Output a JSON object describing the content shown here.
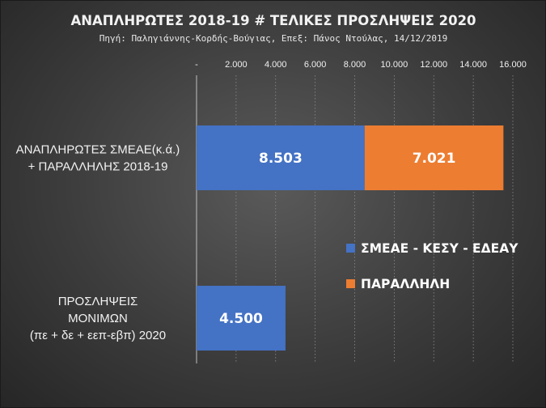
{
  "chart_data": {
    "type": "bar",
    "orientation": "horizontal",
    "stacked": true,
    "title": "ΑΝΑΠΛΗΡΩΤΕΣ 2018-19 # ΤΕΛΙΚΕΣ ΠΡΟΣΛΗΨΕΙΣ 2020",
    "subtitle": "Πηγή: Παληγιάννης-Κορδής-Βούγιας, Επεξ: Πάνος Ντούλας, 14/12/2019",
    "categories": [
      [
        "ΑΝΑΠΛΗΡΩΤΕΣ ΣΜΕΑΕ(κ.ά.)",
        "+ ΠΑΡΑΛΛΗΛΗΣ 2018-19"
      ],
      [
        "ΠΡΟΣΛΗΨΕΙΣ",
        "ΜΟΝΙΜΩΝ",
        "(πε + δε + εεπ-εβπ)   2020"
      ]
    ],
    "series": [
      {
        "name": "ΣΜΕΑΕ - ΚΕΣΥ - ΕΔΕΑΥ",
        "color": "#4472c4",
        "values": [
          8503,
          4500
        ],
        "labels": [
          "8.503",
          "4.500"
        ]
      },
      {
        "name": "ΠΑΡΑΛΛΗΛΗ",
        "color": "#ed7d31",
        "values": [
          7021,
          null
        ],
        "labels": [
          "7.021",
          ""
        ]
      }
    ],
    "xlim": [
      0,
      16000
    ],
    "xticks": [
      0,
      2000,
      4000,
      6000,
      8000,
      10000,
      12000,
      14000,
      16000
    ],
    "xtick_labels": [
      "-",
      "2.000",
      "4.000",
      "6.000",
      "8.000",
      "10.000",
      "12.000",
      "14.000",
      "16.000"
    ],
    "xaxis_position": "top",
    "grid": true,
    "legend_position": "right",
    "xlabel": "",
    "ylabel": ""
  }
}
